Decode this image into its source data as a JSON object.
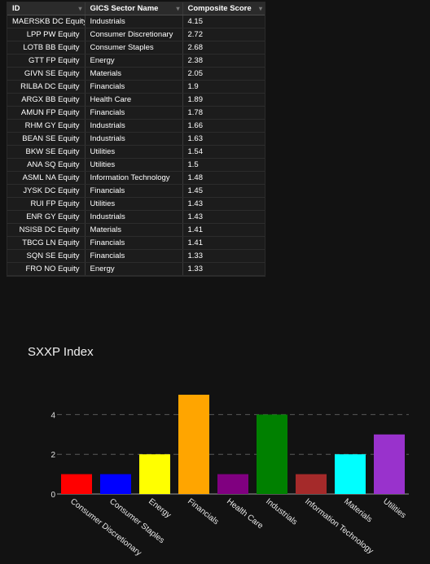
{
  "table": {
    "columns": [
      "ID",
      "GICS Sector Name",
      "Composite Score"
    ],
    "rows": [
      [
        "MAERSKB DC Equity",
        "Industrials",
        "4.15"
      ],
      [
        "LPP PW Equity",
        "Consumer Discretionary",
        "2.72"
      ],
      [
        "LOTB BB Equity",
        "Consumer Staples",
        "2.68"
      ],
      [
        "GTT FP Equity",
        "Energy",
        "2.38"
      ],
      [
        "GIVN SE Equity",
        "Materials",
        "2.05"
      ],
      [
        "RILBA DC Equity",
        "Financials",
        "1.9"
      ],
      [
        "ARGX BB Equity",
        "Health Care",
        "1.89"
      ],
      [
        "AMUN FP Equity",
        "Financials",
        "1.78"
      ],
      [
        "RHM GY Equity",
        "Industrials",
        "1.66"
      ],
      [
        "BEAN SE Equity",
        "Industrials",
        "1.63"
      ],
      [
        "BKW SE Equity",
        "Utilities",
        "1.54"
      ],
      [
        "ANA SQ Equity",
        "Utilities",
        "1.5"
      ],
      [
        "ASML NA Equity",
        "Information Technology",
        "1.48"
      ],
      [
        "JYSK DC Equity",
        "Financials",
        "1.45"
      ],
      [
        "RUI FP Equity",
        "Utilities",
        "1.43"
      ],
      [
        "ENR GY Equity",
        "Industrials",
        "1.43"
      ],
      [
        "NSISB DC Equity",
        "Materials",
        "1.41"
      ],
      [
        "TBCG LN Equity",
        "Financials",
        "1.41"
      ],
      [
        "SQN SE Equity",
        "Financials",
        "1.33"
      ],
      [
        "FRO NO Equity",
        "Energy",
        "1.33"
      ]
    ]
  },
  "chart_data": {
    "type": "bar",
    "title": "SXXP Index",
    "categories": [
      "Consumer Discretionary",
      "Consumer Staples",
      "Energy",
      "Financials",
      "Health Care",
      "Industrials",
      "Information Technology",
      "Materials",
      "Utilities"
    ],
    "values": [
      1,
      1,
      2,
      5,
      1,
      4,
      1,
      2,
      3
    ],
    "colors": [
      "#ff0000",
      "#0000ff",
      "#ffff00",
      "#ffa500",
      "#800080",
      "#008000",
      "#a52a2a",
      "#00ffff",
      "#9932cc"
    ],
    "yticks": [
      0,
      2,
      4
    ],
    "ylim": [
      0,
      5.2
    ],
    "grid": "horizontal dashed"
  }
}
